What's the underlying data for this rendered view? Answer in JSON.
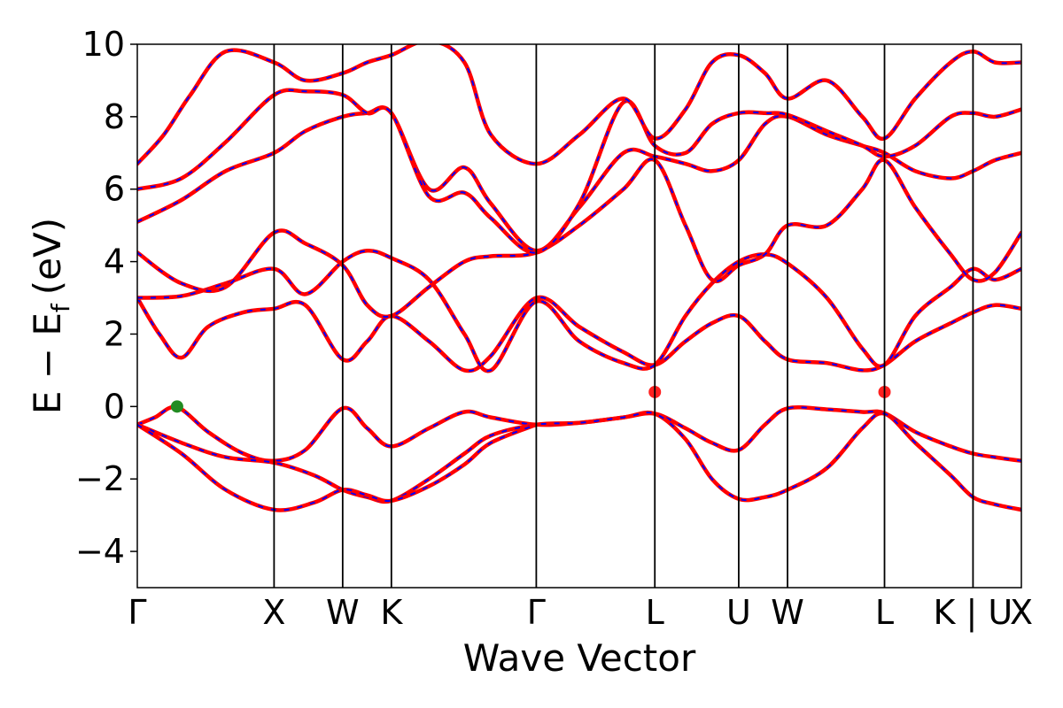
{
  "chart_data": {
    "type": "line",
    "xlabel": "Wave Vector",
    "ylabel": {
      "main": "E − E",
      "subscript": "f",
      "unit": "(eV)"
    },
    "ylim": [
      -5,
      10
    ],
    "yticks": [
      -4,
      -2,
      0,
      2,
      4,
      6,
      8,
      10
    ],
    "ytick_labels": [
      "−4",
      "−2",
      "0",
      "2",
      "4",
      "6",
      "8",
      "10"
    ],
    "xlim": [
      0,
      1
    ],
    "kpoints": [
      {
        "label": "Γ",
        "x": 0.0
      },
      {
        "label": "X",
        "x": 0.1547
      },
      {
        "label": "W",
        "x": 0.2323
      },
      {
        "label": "K",
        "x": 0.2874
      },
      {
        "label": "Γ",
        "x": 0.4513
      },
      {
        "label": "L",
        "x": 0.5854
      },
      {
        "label": "U",
        "x": 0.6803
      },
      {
        "label": "W",
        "x": 0.7355
      },
      {
        "label": "L",
        "x": 0.8452
      },
      {
        "label": "K | U",
        "x": 0.9453
      },
      {
        "label": "X",
        "x": 1.0
      }
    ],
    "grid": false,
    "line_colors": {
      "band": "#ff0000",
      "dash_overlay": "#0000ff",
      "vline": "#000000"
    },
    "series": [
      {
        "x": [
          0,
          0.02,
          0.045,
          0.08,
          0.12,
          0.1547,
          0.19,
          0.2323,
          0.26,
          0.2874,
          0.33,
          0.37,
          0.4,
          0.4513,
          0.5,
          0.55,
          0.5854,
          0.62,
          0.65,
          0.6803,
          0.71,
          0.7355,
          0.78,
          0.82,
          0.8452,
          0.88,
          0.92,
          0.9453,
          0.97,
          1.0
        ],
        "y": [
          -0.5,
          -0.3,
          -0.02,
          -0.7,
          -1.3,
          -1.5,
          -1.2,
          -0.05,
          -0.6,
          -1.1,
          -0.6,
          -0.15,
          -0.3,
          -0.5,
          -0.45,
          -0.3,
          -0.2,
          -0.6,
          -1.0,
          -1.2,
          -0.5,
          -0.05,
          -0.08,
          -0.15,
          -0.18,
          -0.7,
          -1.1,
          -1.3,
          -1.4,
          -1.5
        ]
      },
      {
        "x": [
          0,
          0.05,
          0.1,
          0.1547,
          0.2,
          0.2323,
          0.26,
          0.2874,
          0.33,
          0.37,
          0.4,
          0.4513,
          0.5,
          0.55,
          0.5854,
          0.62,
          0.65,
          0.6803,
          0.71,
          0.7355,
          0.78,
          0.82,
          0.8452,
          0.88,
          0.92,
          0.9453,
          0.97,
          1.0
        ],
        "y": [
          -0.5,
          -1.0,
          -1.4,
          -1.55,
          -1.9,
          -2.3,
          -2.5,
          -2.6,
          -2.0,
          -1.3,
          -0.8,
          -0.5,
          -0.45,
          -0.3,
          -0.2,
          -0.9,
          -2.0,
          -2.55,
          -2.5,
          -2.3,
          -1.7,
          -0.6,
          -0.2,
          -1.0,
          -1.9,
          -2.5,
          -2.7,
          -2.85
        ]
      },
      {
        "x": [
          0,
          0.05,
          0.1,
          0.1547,
          0.2,
          0.2323,
          0.26,
          0.2874,
          0.33,
          0.37,
          0.4,
          0.4513
        ],
        "y": [
          -0.5,
          -1.3,
          -2.3,
          -2.85,
          -2.65,
          -2.3,
          -2.45,
          -2.6,
          -2.2,
          -1.6,
          -1.0,
          -0.5
        ]
      },
      {
        "x": [
          0,
          0.025,
          0.05,
          0.08,
          0.12,
          0.1547,
          0.19,
          0.2323,
          0.26,
          0.2874,
          0.33,
          0.37,
          0.4,
          0.4513,
          0.5,
          0.55,
          0.5854,
          0.62,
          0.65,
          0.6803,
          0.71,
          0.7355,
          0.78,
          0.82,
          0.8452,
          0.88,
          0.92,
          0.9453,
          0.97,
          1.0
        ],
        "y": [
          3.0,
          2.0,
          1.35,
          2.2,
          2.6,
          2.7,
          2.8,
          1.3,
          1.8,
          2.5,
          1.8,
          1.0,
          1.4,
          3.0,
          2.2,
          1.5,
          1.15,
          1.8,
          2.3,
          2.5,
          1.8,
          1.3,
          1.2,
          1.0,
          1.15,
          1.8,
          2.3,
          2.6,
          2.8,
          2.7
        ]
      },
      {
        "x": [
          0,
          0.05,
          0.1,
          0.1547,
          0.19,
          0.2323,
          0.26,
          0.2874,
          0.33,
          0.37,
          0.4,
          0.4513,
          0.5,
          0.55,
          0.5854,
          0.62,
          0.65,
          0.6803,
          0.71,
          0.7355,
          0.78,
          0.82,
          0.8452,
          0.88,
          0.92,
          0.9453,
          0.97,
          1.0
        ],
        "y": [
          3.0,
          3.05,
          3.4,
          3.8,
          3.1,
          4.0,
          4.3,
          4.1,
          3.5,
          2.0,
          1.0,
          2.9,
          1.8,
          1.2,
          1.15,
          2.5,
          3.4,
          4.0,
          4.2,
          3.95,
          3.0,
          1.6,
          1.15,
          2.5,
          3.3,
          3.8,
          3.5,
          3.8
        ]
      },
      {
        "x": [
          0,
          0.05,
          0.1,
          0.1547,
          0.19,
          0.2323,
          0.26,
          0.2874,
          0.33,
          0.37,
          0.4,
          0.4513,
          0.5,
          0.55,
          0.5854,
          0.62,
          0.65,
          0.6803,
          0.71,
          0.7355,
          0.78,
          0.82,
          0.8452,
          0.88,
          0.92,
          0.9453,
          0.97,
          1.0
        ],
        "y": [
          4.25,
          3.4,
          3.3,
          4.8,
          4.5,
          3.9,
          2.8,
          2.5,
          3.3,
          4.0,
          4.15,
          4.25,
          5.0,
          6.0,
          6.8,
          5.0,
          3.5,
          3.9,
          4.2,
          5.0,
          5.0,
          6.0,
          6.8,
          5.5,
          4.2,
          3.5,
          3.7,
          4.8
        ]
      },
      {
        "x": [
          0,
          0.05,
          0.1,
          0.1547,
          0.19,
          0.2323,
          0.26,
          0.2874,
          0.33,
          0.37,
          0.4,
          0.4513,
          0.5,
          0.55,
          0.5854,
          0.62,
          0.65,
          0.6803,
          0.71,
          0.7355,
          0.78,
          0.82,
          0.8452,
          0.88,
          0.92,
          0.9453,
          0.97,
          1.0
        ],
        "y": [
          5.1,
          5.7,
          6.5,
          7.0,
          7.6,
          8.0,
          8.1,
          8.1,
          6.0,
          6.6,
          5.6,
          4.3,
          5.5,
          7.0,
          6.9,
          6.7,
          6.5,
          6.8,
          7.8,
          8.0,
          7.5,
          7.2,
          7.0,
          6.5,
          6.3,
          6.5,
          6.8,
          7.0
        ]
      },
      {
        "x": [
          0,
          0.05,
          0.1,
          0.1547,
          0.19,
          0.2323,
          0.26,
          0.2874,
          0.33,
          0.37,
          0.4,
          0.4513,
          0.5,
          0.55,
          0.5854,
          0.62,
          0.65,
          0.6803,
          0.71,
          0.7355,
          0.78,
          0.82,
          0.8452,
          0.88,
          0.92,
          0.9453,
          0.97,
          1.0
        ],
        "y": [
          6.0,
          6.3,
          7.3,
          8.6,
          8.7,
          8.6,
          8.1,
          8.1,
          5.8,
          5.9,
          5.2,
          4.25,
          5.6,
          8.4,
          7.2,
          7.0,
          7.8,
          8.1,
          8.1,
          8.05,
          7.6,
          7.2,
          6.9,
          7.2,
          8.0,
          8.1,
          8.0,
          8.2
        ]
      },
      {
        "x": [
          0,
          0.03,
          0.06,
          0.1,
          0.1547,
          0.19,
          0.2323,
          0.26,
          0.2874,
          0.33,
          0.37,
          0.4,
          0.4513,
          0.5,
          0.55,
          0.5854,
          0.62,
          0.65,
          0.6803,
          0.71,
          0.7355,
          0.78,
          0.82,
          0.8452,
          0.88,
          0.92,
          0.9453,
          0.97,
          1.0
        ],
        "y": [
          6.7,
          7.5,
          8.6,
          9.8,
          9.5,
          9.0,
          9.2,
          9.5,
          9.7,
          10.1,
          9.5,
          7.5,
          6.7,
          7.5,
          8.5,
          7.4,
          8.2,
          9.5,
          9.7,
          9.2,
          8.5,
          9.0,
          8.0,
          7.4,
          8.5,
          9.5,
          9.8,
          9.5,
          9.5
        ]
      }
    ],
    "markers": [
      {
        "x": 0.045,
        "y": 0.0,
        "color": "#228b22"
      },
      {
        "x": 0.5854,
        "y": 0.4,
        "color": "#ff2020"
      },
      {
        "x": 0.8452,
        "y": 0.4,
        "color": "#ff2020"
      }
    ]
  }
}
